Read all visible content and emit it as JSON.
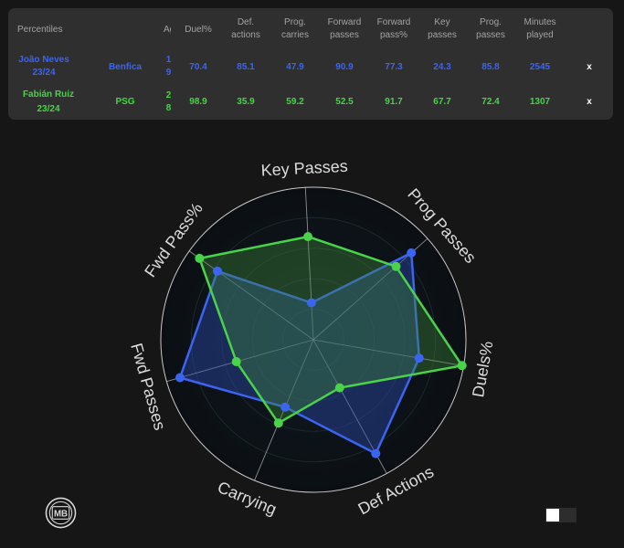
{
  "table": {
    "corner_label": "Percentiles",
    "headers": {
      "age": "Age",
      "duel_pct": "Duel%",
      "def_actions": "Def. actions",
      "prog_carries": "Prog. carries",
      "forward_passes": "Forward passes",
      "forward_pass_pct": "Forward pass%",
      "key_passes": "Key passes",
      "prog_passes": "Prog. passes",
      "minutes": "Minutes played"
    },
    "rows": [
      {
        "player": "João Neves",
        "season": "23/24",
        "team": "Benfica",
        "age": "19",
        "duel_pct": "70.4",
        "def_actions": "85.1",
        "prog_carries": "47.9",
        "forward_passes": "90.9",
        "forward_pass_pct": "77.3",
        "key_passes": "24.3",
        "prog_passes": "85.8",
        "minutes": "2545",
        "remove": "x"
      },
      {
        "player": "Fabián Ruiz",
        "season": "23/24",
        "team": "PSG",
        "age": "28",
        "duel_pct": "98.9",
        "def_actions": "35.9",
        "prog_carries": "59.2",
        "forward_passes": "52.5",
        "forward_pass_pct": "91.7",
        "key_passes": "67.7",
        "prog_passes": "72.4",
        "minutes": "1307",
        "remove": "x"
      }
    ]
  },
  "chart_data": {
    "type": "radar",
    "axes": [
      "Key Passes",
      "Prog Passes",
      "Duels%",
      "Def Actions",
      "Carrying",
      "Fwd Passes",
      "Fwd Pass%"
    ],
    "range": [
      0,
      100
    ],
    "series": [
      {
        "color": "#3b64f0",
        "values": [
          24.3,
          85.8,
          70.4,
          85.1,
          47.9,
          90.9,
          77.3
        ]
      },
      {
        "color": "#49d34a",
        "values": [
          67.7,
          72.4,
          98.9,
          35.9,
          59.2,
          52.5,
          91.7
        ]
      }
    ],
    "grid_color": "#b8b8b8",
    "label_color": "#dcdcdc"
  },
  "logo": {
    "text": "MB",
    "icon": "club-badge-icon"
  },
  "theme_toggle": {
    "icon": "theme-toggle-icon"
  }
}
